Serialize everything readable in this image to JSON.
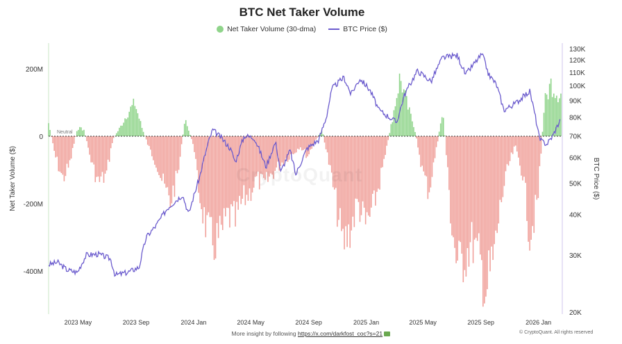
{
  "title": "BTC Net Taker Volume",
  "legend": {
    "bar_label": "Net Taker Volume (30-dma)",
    "line_label": "BTC Price ($)"
  },
  "neutral_label": "Neutral",
  "watermark": "CryptoQuant",
  "footer": {
    "text": "More insight by following",
    "link": "https://x.com/darkfost_coc?s=21"
  },
  "copyright": "© CryptoQuant. All rights reserved",
  "colors": {
    "positive": "#8fd48a",
    "negative": "#f0a09a",
    "price": "#6a5acd",
    "neutral": "#333333"
  },
  "chart_data": {
    "type": "bar+line",
    "ylabel": "Net Taker Volume ($)",
    "y2label": "BTC Price ($)",
    "y_ticks": [
      200000000,
      0,
      -200000000,
      -400000000
    ],
    "y_tick_labels": [
      "200M",
      "0",
      "-200M",
      "-400M"
    ],
    "y2_ticks": [
      20000,
      30000,
      40000,
      50000,
      60000,
      70000,
      80000,
      90000,
      100000,
      110000,
      120000,
      130000
    ],
    "y2_tick_labels": [
      "20K",
      "30K",
      "40K",
      "50K",
      "60K",
      "70K",
      "80K",
      "90K",
      "100K",
      "110K",
      "120K",
      "130K"
    ],
    "y2_scale": "log",
    "x_tick_labels": [
      "2023 May",
      "2023 Sep",
      "2024 Jan",
      "2024 May",
      "2024 Sep",
      "2025 Jan",
      "2025 May",
      "2025 Sep",
      "2026 Jan"
    ],
    "net_taker_volume": [
      {
        "date": "2023-04-01",
        "value": 40000000
      },
      {
        "date": "2023-04-15",
        "value": -60000000
      },
      {
        "date": "2023-05-01",
        "value": -130000000
      },
      {
        "date": "2023-05-15",
        "value": -90000000
      },
      {
        "date": "2023-06-01",
        "value": 25000000
      },
      {
        "date": "2023-06-15",
        "value": 20000000
      },
      {
        "date": "2023-07-01",
        "value": -80000000
      },
      {
        "date": "2023-07-15",
        "value": -140000000
      },
      {
        "date": "2023-08-01",
        "value": -120000000
      },
      {
        "date": "2023-08-15",
        "value": -10000000
      },
      {
        "date": "2023-09-01",
        "value": 30000000
      },
      {
        "date": "2023-09-15",
        "value": 70000000
      },
      {
        "date": "2023-10-01",
        "value": 100000000
      },
      {
        "date": "2023-10-15",
        "value": 30000000
      },
      {
        "date": "2023-11-01",
        "value": -40000000
      },
      {
        "date": "2023-11-15",
        "value": -80000000
      },
      {
        "date": "2023-12-01",
        "value": -150000000
      },
      {
        "date": "2023-12-15",
        "value": -200000000
      },
      {
        "date": "2024-01-01",
        "value": -110000000
      },
      {
        "date": "2024-01-15",
        "value": 50000000
      },
      {
        "date": "2024-02-01",
        "value": -20000000
      },
      {
        "date": "2024-02-15",
        "value": -180000000
      },
      {
        "date": "2024-03-01",
        "value": -280000000
      },
      {
        "date": "2024-03-15",
        "value": -330000000
      },
      {
        "date": "2024-04-01",
        "value": -300000000
      },
      {
        "date": "2024-04-15",
        "value": -240000000
      },
      {
        "date": "2024-05-01",
        "value": -260000000
      },
      {
        "date": "2024-05-15",
        "value": -200000000
      },
      {
        "date": "2024-06-01",
        "value": -170000000
      },
      {
        "date": "2024-06-15",
        "value": -130000000
      },
      {
        "date": "2024-07-01",
        "value": -150000000
      },
      {
        "date": "2024-07-15",
        "value": -120000000
      },
      {
        "date": "2024-08-01",
        "value": -90000000
      },
      {
        "date": "2024-08-15",
        "value": -70000000
      },
      {
        "date": "2024-09-01",
        "value": -50000000
      },
      {
        "date": "2024-09-15",
        "value": -30000000
      },
      {
        "date": "2024-10-01",
        "value": -60000000
      },
      {
        "date": "2024-10-15",
        "value": -20000000
      },
      {
        "date": "2024-11-01",
        "value": 20000000
      },
      {
        "date": "2024-11-15",
        "value": -80000000
      },
      {
        "date": "2024-12-01",
        "value": -210000000
      },
      {
        "date": "2024-12-15",
        "value": -330000000
      },
      {
        "date": "2025-01-01",
        "value": -280000000
      },
      {
        "date": "2025-01-15",
        "value": -200000000
      },
      {
        "date": "2025-02-01",
        "value": -270000000
      },
      {
        "date": "2025-02-15",
        "value": -230000000
      },
      {
        "date": "2025-03-01",
        "value": -150000000
      },
      {
        "date": "2025-03-15",
        "value": -60000000
      },
      {
        "date": "2025-04-01",
        "value": 70000000
      },
      {
        "date": "2025-04-15",
        "value": 180000000
      },
      {
        "date": "2025-05-01",
        "value": 90000000
      },
      {
        "date": "2025-05-15",
        "value": 30000000
      },
      {
        "date": "2025-06-01",
        "value": -100000000
      },
      {
        "date": "2025-06-15",
        "value": -170000000
      },
      {
        "date": "2025-07-01",
        "value": -40000000
      },
      {
        "date": "2025-07-15",
        "value": 80000000
      },
      {
        "date": "2025-08-01",
        "value": -250000000
      },
      {
        "date": "2025-08-15",
        "value": -400000000
      },
      {
        "date": "2025-09-01",
        "value": -360000000
      },
      {
        "date": "2025-09-15",
        "value": -320000000
      },
      {
        "date": "2025-10-01",
        "value": -380000000
      },
      {
        "date": "2025-10-15",
        "value": -470000000
      },
      {
        "date": "2025-11-01",
        "value": -360000000
      },
      {
        "date": "2025-11-15",
        "value": -200000000
      },
      {
        "date": "2025-12-01",
        "value": -90000000
      },
      {
        "date": "2025-12-15",
        "value": -30000000
      },
      {
        "date": "2026-01-01",
        "value": -120000000
      },
      {
        "date": "2026-01-15",
        "value": -300000000
      },
      {
        "date": "2026-02-01",
        "value": -200000000
      },
      {
        "date": "2026-02-15",
        "value": 100000000
      },
      {
        "date": "2026-03-01",
        "value": 160000000
      },
      {
        "date": "2026-03-15",
        "value": 130000000
      }
    ],
    "btc_price": [
      {
        "date": "2023-04-01",
        "value": 28000
      },
      {
        "date": "2023-04-20",
        "value": 28500
      },
      {
        "date": "2023-05-10",
        "value": 27000
      },
      {
        "date": "2023-06-01",
        "value": 26500
      },
      {
        "date": "2023-06-20",
        "value": 30000
      },
      {
        "date": "2023-07-15",
        "value": 30200
      },
      {
        "date": "2023-08-10",
        "value": 29200
      },
      {
        "date": "2023-08-20",
        "value": 26000
      },
      {
        "date": "2023-09-15",
        "value": 26500
      },
      {
        "date": "2023-10-10",
        "value": 27500
      },
      {
        "date": "2023-10-25",
        "value": 34000
      },
      {
        "date": "2023-11-15",
        "value": 37000
      },
      {
        "date": "2023-12-10",
        "value": 42000
      },
      {
        "date": "2024-01-10",
        "value": 46000
      },
      {
        "date": "2024-01-23",
        "value": 40000
      },
      {
        "date": "2024-02-15",
        "value": 52000
      },
      {
        "date": "2024-03-05",
        "value": 67000
      },
      {
        "date": "2024-03-14",
        "value": 73000
      },
      {
        "date": "2024-04-01",
        "value": 69000
      },
      {
        "date": "2024-04-20",
        "value": 64000
      },
      {
        "date": "2024-05-01",
        "value": 58000
      },
      {
        "date": "2024-05-20",
        "value": 70000
      },
      {
        "date": "2024-06-10",
        "value": 69000
      },
      {
        "date": "2024-07-05",
        "value": 56000
      },
      {
        "date": "2024-07-25",
        "value": 67000
      },
      {
        "date": "2024-08-05",
        "value": 54000
      },
      {
        "date": "2024-08-25",
        "value": 63000
      },
      {
        "date": "2024-09-06",
        "value": 53000
      },
      {
        "date": "2024-09-30",
        "value": 64000
      },
      {
        "date": "2024-10-25",
        "value": 68000
      },
      {
        "date": "2024-11-10",
        "value": 80000
      },
      {
        "date": "2024-11-22",
        "value": 98000
      },
      {
        "date": "2024-12-17",
        "value": 106000
      },
      {
        "date": "2025-01-01",
        "value": 94000
      },
      {
        "date": "2025-01-20",
        "value": 105000
      },
      {
        "date": "2025-02-10",
        "value": 97000
      },
      {
        "date": "2025-03-01",
        "value": 84000
      },
      {
        "date": "2025-04-08",
        "value": 77000
      },
      {
        "date": "2025-04-25",
        "value": 94000
      },
      {
        "date": "2025-05-22",
        "value": 111000
      },
      {
        "date": "2025-06-20",
        "value": 103000
      },
      {
        "date": "2025-07-14",
        "value": 122000
      },
      {
        "date": "2025-08-14",
        "value": 124000
      },
      {
        "date": "2025-09-01",
        "value": 108000
      },
      {
        "date": "2025-10-06",
        "value": 125000
      },
      {
        "date": "2025-10-20",
        "value": 108000
      },
      {
        "date": "2025-11-05",
        "value": 101000
      },
      {
        "date": "2025-11-21",
        "value": 84000
      },
      {
        "date": "2025-12-15",
        "value": 88000
      },
      {
        "date": "2026-01-15",
        "value": 96000
      },
      {
        "date": "2026-02-05",
        "value": 68000
      },
      {
        "date": "2026-02-20",
        "value": 66000
      },
      {
        "date": "2026-03-05",
        "value": 70000
      },
      {
        "date": "2026-03-20",
        "value": 78000
      }
    ]
  }
}
